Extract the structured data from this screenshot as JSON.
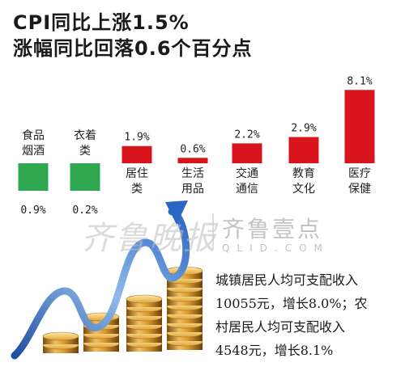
{
  "title_line1": "CPI同比上涨1.5%",
  "title_line2": "涨幅同比回落0.6个百分点",
  "chart_data": {
    "type": "bar",
    "categories": [
      [
        "食品",
        "烟酒"
      ],
      [
        "衣着",
        "类"
      ],
      [
        "居住",
        "类"
      ],
      [
        "生活",
        "用品"
      ],
      [
        "交通",
        "通信"
      ],
      [
        "教育",
        "文化"
      ],
      [
        "医疗",
        "保健"
      ]
    ],
    "values": [
      -0.9,
      -0.2,
      1.9,
      0.6,
      2.2,
      2.9,
      8.1
    ],
    "value_labels": [
      "0.9%",
      "0.2%",
      "1.9%",
      "0.6%",
      "2.2%",
      "2.9%",
      "8.1%"
    ],
    "colors": {
      "positive": "#d8141c",
      "negative": "#2fa84f"
    }
  },
  "watermark": {
    "left_text": "齐鲁晚报",
    "right_text": "齐鲁壹点",
    "right_sub": "QLID.COM"
  },
  "note": {
    "lines": [
      "城镇居民人均可支配收入",
      "10055元，增长8.0%；农",
      "村居民人均可支配收入",
      "4548元，增长8.1%"
    ]
  }
}
